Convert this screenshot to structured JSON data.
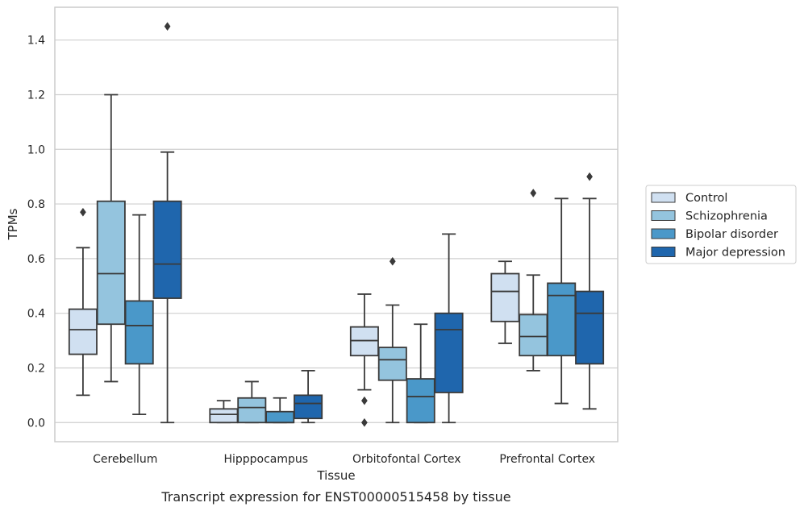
{
  "caption": "Transcript expression for ENST00000515458 by tissue",
  "chart_data": {
    "type": "boxplot",
    "xlabel": "Tissue",
    "ylabel": "TPMs",
    "ylim": [
      -0.07,
      1.52
    ],
    "yticks": [
      "0.0",
      "0.2",
      "0.4",
      "0.6",
      "0.8",
      "1.0",
      "1.2",
      "1.4"
    ],
    "ytick_values": [
      0.0,
      0.2,
      0.4,
      0.6,
      0.8,
      1.0,
      1.2,
      1.4
    ],
    "grid": "horizontal",
    "legend_position": "right",
    "categories": [
      "Cerebellum",
      "Hipppocampus",
      "Orbitofontal Cortex",
      "Prefrontal Cortex"
    ],
    "series": [
      {
        "name": "Control",
        "color": "#d0e0f1",
        "boxes": [
          {
            "whisker_low": 0.1,
            "q1": 0.25,
            "median": 0.34,
            "q3": 0.415,
            "whisker_high": 0.64,
            "outliers": [
              0.77
            ]
          },
          {
            "whisker_low": 0.0,
            "q1": 0.0,
            "median": 0.03,
            "q3": 0.05,
            "whisker_high": 0.08,
            "outliers": []
          },
          {
            "whisker_low": 0.12,
            "q1": 0.245,
            "median": 0.3,
            "q3": 0.35,
            "whisker_high": 0.47,
            "outliers": [
              0.08,
              0.0
            ]
          },
          {
            "whisker_low": 0.29,
            "q1": 0.37,
            "median": 0.48,
            "q3": 0.545,
            "whisker_high": 0.59,
            "outliers": []
          }
        ]
      },
      {
        "name": "Schizophrenia",
        "color": "#94c4de",
        "boxes": [
          {
            "whisker_low": 0.15,
            "q1": 0.36,
            "median": 0.545,
            "q3": 0.81,
            "whisker_high": 1.2,
            "outliers": []
          },
          {
            "whisker_low": 0.0,
            "q1": 0.0,
            "median": 0.055,
            "q3": 0.09,
            "whisker_high": 0.15,
            "outliers": []
          },
          {
            "whisker_low": 0.0,
            "q1": 0.155,
            "median": 0.23,
            "q3": 0.275,
            "whisker_high": 0.43,
            "outliers": [
              0.59
            ]
          },
          {
            "whisker_low": 0.19,
            "q1": 0.245,
            "median": 0.315,
            "q3": 0.395,
            "whisker_high": 0.54,
            "outliers": [
              0.84
            ]
          }
        ]
      },
      {
        "name": "Bipolar disorder",
        "color": "#4a98c9",
        "boxes": [
          {
            "whisker_low": 0.03,
            "q1": 0.215,
            "median": 0.355,
            "q3": 0.445,
            "whisker_high": 0.76,
            "outliers": []
          },
          {
            "whisker_low": 0.0,
            "q1": 0.0,
            "median": 0.0,
            "q3": 0.04,
            "whisker_high": 0.09,
            "outliers": []
          },
          {
            "whisker_low": 0.0,
            "q1": 0.0,
            "median": 0.095,
            "q3": 0.16,
            "whisker_high": 0.36,
            "outliers": []
          },
          {
            "whisker_low": 0.07,
            "q1": 0.245,
            "median": 0.465,
            "q3": 0.51,
            "whisker_high": 0.82,
            "outliers": []
          }
        ]
      },
      {
        "name": "Major depression",
        "color": "#1f66ad",
        "boxes": [
          {
            "whisker_low": 0.0,
            "q1": 0.455,
            "median": 0.58,
            "q3": 0.81,
            "whisker_high": 0.99,
            "outliers": [
              1.45
            ]
          },
          {
            "whisker_low": 0.0,
            "q1": 0.015,
            "median": 0.07,
            "q3": 0.1,
            "whisker_high": 0.19,
            "outliers": []
          },
          {
            "whisker_low": 0.0,
            "q1": 0.11,
            "median": 0.34,
            "q3": 0.4,
            "whisker_high": 0.69,
            "outliers": []
          },
          {
            "whisker_low": 0.05,
            "q1": 0.215,
            "median": 0.4,
            "q3": 0.48,
            "whisker_high": 0.82,
            "outliers": [
              0.9
            ]
          }
        ]
      }
    ]
  },
  "colors": {
    "grid": "#cfcfcf",
    "frame": "#cccccc",
    "line": "#3a3a3a"
  }
}
